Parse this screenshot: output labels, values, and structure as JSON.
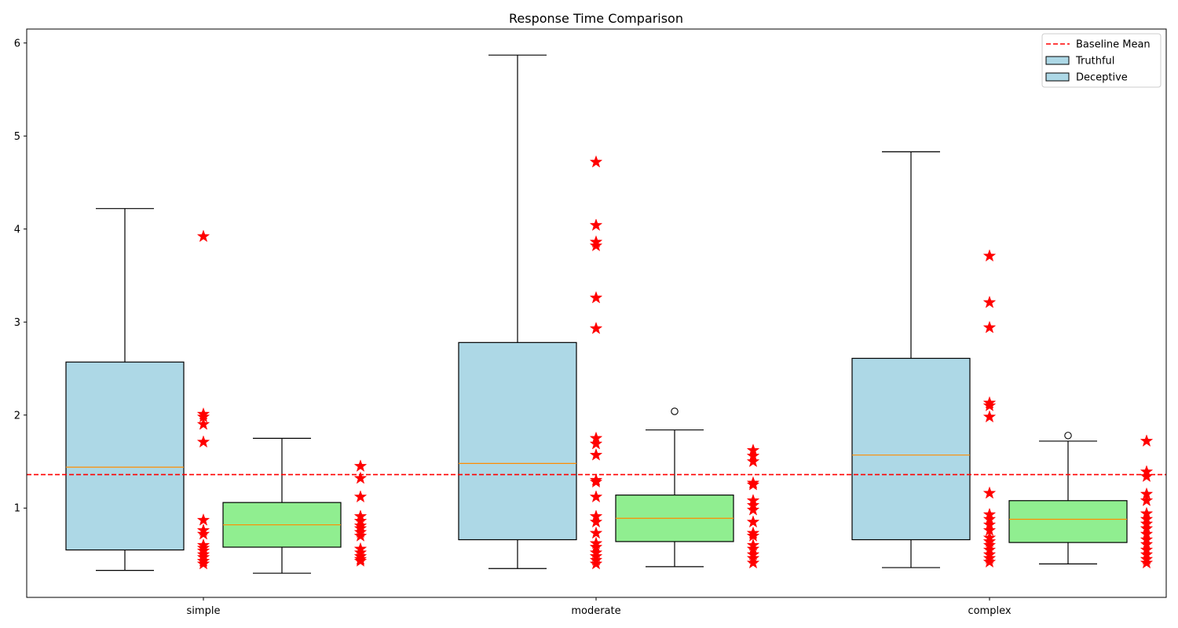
{
  "chart_data": {
    "type": "box",
    "title": "Response Time Comparison",
    "xlabel": "",
    "ylabel": "",
    "categories": [
      "simple",
      "moderate",
      "complex"
    ],
    "ylim": [
      0.04,
      6.15
    ],
    "yticks": [
      "1",
      "2",
      "3",
      "4",
      "5",
      "6"
    ],
    "grid": false,
    "legend_position": "top-right",
    "baseline_mean": 1.36,
    "legend": [
      {
        "label": "Baseline Mean",
        "kind": "dashed-line",
        "color": "#ff0000"
      },
      {
        "label": "Truthful",
        "kind": "patch",
        "color": "#add8e6"
      },
      {
        "label": "Deceptive",
        "kind": "patch",
        "color": "#add8e6"
      }
    ],
    "colors": {
      "truthful_box": "#add8e6",
      "deceptive_box": "#90ee90",
      "median": "#ff8c00",
      "star": "#ff0000",
      "baseline": "#ff0000"
    },
    "groups": [
      {
        "category": "simple",
        "truthful": {
          "whisker_low": 0.33,
          "q1": 0.55,
          "median": 1.44,
          "q3": 2.57,
          "whisker_high": 4.22,
          "fliers": []
        },
        "deceptive": {
          "whisker_low": 0.3,
          "q1": 0.58,
          "median": 0.82,
          "q3": 1.06,
          "whisker_high": 1.75,
          "fliers": []
        },
        "truthful_points": [
          3.92,
          2.01,
          1.98,
          1.9,
          1.71,
          0.87,
          0.76,
          0.72,
          0.6,
          0.57,
          0.54,
          0.5,
          0.47,
          0.43,
          0.4
        ],
        "deceptive_points": [
          1.45,
          1.32,
          1.12,
          0.91,
          0.86,
          0.81,
          0.78,
          0.74,
          0.7,
          0.56,
          0.52,
          0.48,
          0.45,
          0.43
        ]
      },
      {
        "category": "moderate",
        "truthful": {
          "whisker_low": 0.35,
          "q1": 0.66,
          "median": 1.48,
          "q3": 2.78,
          "whisker_high": 5.87,
          "fliers": []
        },
        "deceptive": {
          "whisker_low": 0.37,
          "q1": 0.64,
          "median": 0.89,
          "q3": 1.14,
          "whisker_high": 1.84,
          "fliers": [
            2.04
          ]
        },
        "truthful_points": [
          4.72,
          4.04,
          3.86,
          3.82,
          3.26,
          2.93,
          1.75,
          1.69,
          1.57,
          1.3,
          1.28,
          1.12,
          0.91,
          0.85,
          0.73,
          0.62,
          0.58,
          0.52,
          0.48,
          0.44,
          0.4
        ],
        "deceptive_points": [
          1.62,
          1.56,
          1.5,
          1.27,
          1.25,
          1.08,
          1.03,
          0.98,
          0.85,
          0.73,
          0.7,
          0.6,
          0.56,
          0.5,
          0.46,
          0.41
        ]
      },
      {
        "category": "complex",
        "truthful": {
          "whisker_low": 0.36,
          "q1": 0.66,
          "median": 1.57,
          "q3": 2.61,
          "whisker_high": 4.83,
          "fliers": []
        },
        "deceptive": {
          "whisker_low": 0.4,
          "q1": 0.63,
          "median": 0.88,
          "q3": 1.08,
          "whisker_high": 1.72,
          "fliers": [
            1.78
          ]
        },
        "truthful_points": [
          3.71,
          3.21,
          2.94,
          2.13,
          2.1,
          1.98,
          1.16,
          0.93,
          0.88,
          0.82,
          0.76,
          0.68,
          0.64,
          0.6,
          0.55,
          0.5,
          0.46,
          0.42
        ],
        "deceptive_points": [
          1.72,
          1.39,
          1.34,
          1.15,
          1.08,
          0.94,
          0.88,
          0.83,
          0.78,
          0.72,
          0.66,
          0.61,
          0.55,
          0.5,
          0.45,
          0.41
        ]
      }
    ]
  }
}
